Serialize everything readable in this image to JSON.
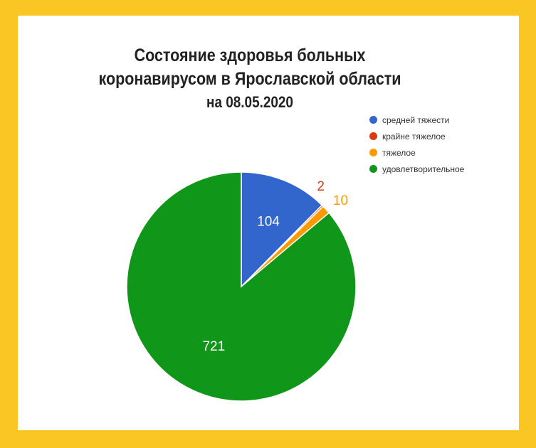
{
  "title": {
    "line1": "Состояние здоровья больных",
    "line2": "коронавирусом в Ярославской области",
    "line3": "на 08.05.2020"
  },
  "chart_data": {
    "type": "pie",
    "title": "Состояние здоровья больных коронавирусом в Ярославской области на 08.05.2020",
    "legend_position": "top-right",
    "slices": [
      {
        "label": "средней тяжести",
        "value": 104,
        "color": "#3366cc",
        "label_color": "#ffffff",
        "label_text": "104"
      },
      {
        "label": "крайне тяжелое",
        "value": 2,
        "color": "#dc3912",
        "label_color": "#dc3912",
        "label_text": "2"
      },
      {
        "label": "тяжелое",
        "value": 10,
        "color": "#ff9900",
        "label_color": "#ff9900",
        "label_text": "10"
      },
      {
        "label": "удовлетворительное",
        "value": 721,
        "color": "#109618",
        "label_color": "#ffffff",
        "label_text": "721"
      }
    ]
  },
  "colors": {
    "frame": "#f9c623",
    "card": "#ffffff"
  }
}
